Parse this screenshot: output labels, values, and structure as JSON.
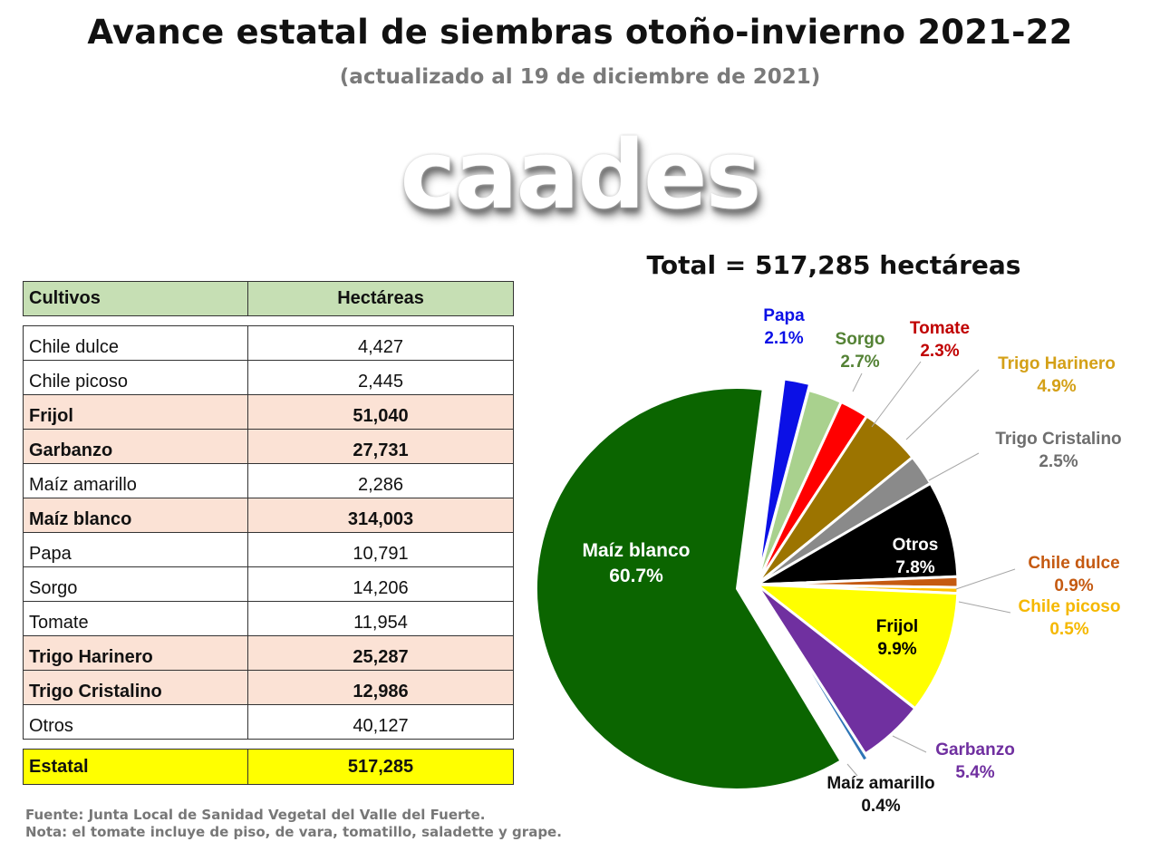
{
  "header": {
    "title": "Avance estatal de siembras otoño-invierno 2021-22",
    "subtitle": "(actualizado al 19 de diciembre de 2021)",
    "logo_text": "caades"
  },
  "table": {
    "col_crop": "Cultivos",
    "col_ha": "Hectáreas",
    "rows": [
      {
        "name": "Chile dulce",
        "value": "4,427"
      },
      {
        "name": "Chile picoso",
        "value": "2,445"
      },
      {
        "name": "Frijol",
        "value": "51,040"
      },
      {
        "name": "Garbanzo",
        "value": "27,731"
      },
      {
        "name": "Maíz amarillo",
        "value": "2,286"
      },
      {
        "name": "Maíz blanco",
        "value": "314,003"
      },
      {
        "name": "Papa",
        "value": "10,791"
      },
      {
        "name": "Sorgo",
        "value": "14,206"
      },
      {
        "name": "Tomate",
        "value": "11,954"
      },
      {
        "name": "Trigo Harinero",
        "value": "25,287"
      },
      {
        "name": "Trigo Cristalino",
        "value": "12,986"
      },
      {
        "name": "Otros",
        "value": "40,127"
      }
    ],
    "total_label": "Estatal",
    "total_value": "517,285"
  },
  "footer": {
    "source": "Fuente: Junta Local de Sanidad Vegetal del Valle del Fuerte.",
    "note": "Nota: el tomate incluye de piso, de vara, tomatillo, saladette y grape."
  },
  "chart_data": {
    "type": "pie",
    "title": "Total = 517,285 hectáreas",
    "slices": [
      {
        "name": "Papa",
        "value": 10791,
        "percent": "2.1%",
        "color": "#0b10e6"
      },
      {
        "name": "Sorgo",
        "value": 14206,
        "percent": "2.7%",
        "color": "#a9d18e"
      },
      {
        "name": "Tomate",
        "value": 11954,
        "percent": "2.3%",
        "color": "#ff0000"
      },
      {
        "name": "Trigo Harinero",
        "value": 25287,
        "percent": "4.9%",
        "color": "#9c7400"
      },
      {
        "name": "Trigo Cristalino",
        "value": 12986,
        "percent": "2.5%",
        "color": "#8a8a8a"
      },
      {
        "name": "Otros",
        "value": 40127,
        "percent": "7.8%",
        "color": "#000000"
      },
      {
        "name": "Chile dulce",
        "value": 4427,
        "percent": "0.9%",
        "color": "#c55a11"
      },
      {
        "name": "Chile picoso",
        "value": 2445,
        "percent": "0.5%",
        "color": "#ffc000"
      },
      {
        "name": "Frijol",
        "value": 51040,
        "percent": "9.9%",
        "color": "#ffff00"
      },
      {
        "name": "Garbanzo",
        "value": 27731,
        "percent": "5.4%",
        "color": "#7030a0"
      },
      {
        "name": "Maíz amarillo",
        "value": 2286,
        "percent": "0.4%",
        "color": "#2e75b6"
      },
      {
        "name": "Maíz blanco",
        "value": 314003,
        "percent": "60.7%",
        "color": "#0b6500"
      }
    ],
    "label_colors": {
      "Papa": "#0b10e6",
      "Sorgo": "#548235",
      "Tomate": "#c00000",
      "Trigo Harinero": "#d4a017",
      "Trigo Cristalino": "#6e6e6e",
      "Otros": "#ffffff",
      "Chile dulce": "#c55a11",
      "Chile picoso": "#f5b800",
      "Frijol": "#000000",
      "Garbanzo": "#7030a0",
      "Maíz amarillo": "#111111",
      "Maíz blanco": "#ffffff"
    }
  }
}
